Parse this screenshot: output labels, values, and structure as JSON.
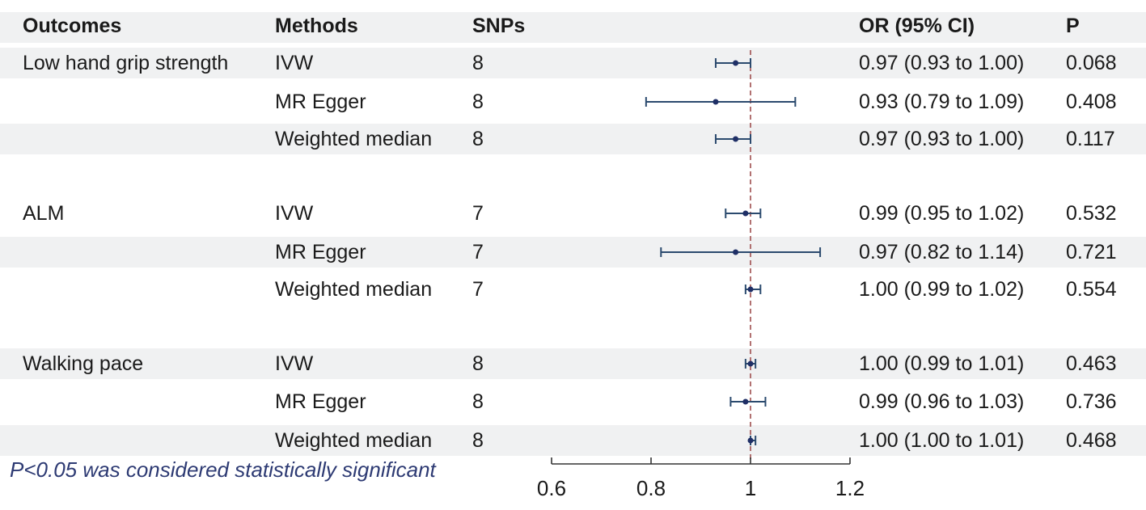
{
  "headers": {
    "outcomes": "Outcomes",
    "methods": "Methods",
    "snps": "SNPs",
    "or_ci": "OR (95% CI)",
    "p": "P"
  },
  "outcomes": [
    "Low hand grip strength",
    "ALM",
    "Walking pace"
  ],
  "rows": [
    {
      "outcome": "Low hand grip strength",
      "method": "IVW",
      "snps": "8",
      "or_ci": "0.97 (0.93 to 1.00)",
      "p": "0.068"
    },
    {
      "outcome": "",
      "method": "MR Egger",
      "snps": "8",
      "or_ci": "0.93 (0.79 to 1.09)",
      "p": "0.408"
    },
    {
      "outcome": "",
      "method": "Weighted median",
      "snps": "8",
      "or_ci": "0.97 (0.93 to 1.00)",
      "p": "0.117"
    },
    {
      "outcome": "ALM",
      "method": "IVW",
      "snps": "7",
      "or_ci": "0.99 (0.95 to 1.02)",
      "p": "0.532"
    },
    {
      "outcome": "",
      "method": "MR Egger",
      "snps": "7",
      "or_ci": "0.97 (0.82 to 1.14)",
      "p": "0.721"
    },
    {
      "outcome": "",
      "method": "Weighted median",
      "snps": "7",
      "or_ci": "1.00 (0.99 to 1.02)",
      "p": "0.554"
    },
    {
      "outcome": "Walking pace",
      "method": "IVW",
      "snps": "8",
      "or_ci": "1.00 (0.99 to 1.01)",
      "p": "0.463"
    },
    {
      "outcome": "",
      "method": "MR Egger",
      "snps": "8",
      "or_ci": "0.99 (0.96 to 1.03)",
      "p": "0.736"
    },
    {
      "outcome": "",
      "method": "Weighted median",
      "snps": "8",
      "or_ci": "1.00 (1.00 to 1.01)",
      "p": "0.468"
    }
  ],
  "footnote": "P<0.05 was considered statistically significant",
  "chart_data": {
    "type": "forest",
    "x_ticks": [
      "0.6",
      "0.8",
      "1",
      "1.2"
    ],
    "x_tick_values": [
      0.6,
      0.8,
      1.0,
      1.2
    ],
    "xlim": [
      0.6,
      1.2
    ],
    "reference_line": 1.0,
    "points": [
      {
        "label": "Low hand grip strength - IVW",
        "or": 0.97,
        "lower": 0.93,
        "upper": 1.0
      },
      {
        "label": "Low hand grip strength - MR Egger",
        "or": 0.93,
        "lower": 0.79,
        "upper": 1.09
      },
      {
        "label": "Low hand grip strength - Weighted median",
        "or": 0.97,
        "lower": 0.93,
        "upper": 1.0
      },
      {
        "label": "ALM - IVW",
        "or": 0.99,
        "lower": 0.95,
        "upper": 1.02
      },
      {
        "label": "ALM - MR Egger",
        "or": 0.97,
        "lower": 0.82,
        "upper": 1.14
      },
      {
        "label": "ALM - Weighted median",
        "or": 1.0,
        "lower": 0.99,
        "upper": 1.02
      },
      {
        "label": "Walking pace - IVW",
        "or": 1.0,
        "lower": 0.99,
        "upper": 1.01
      },
      {
        "label": "Walking pace - MR Egger",
        "or": 0.99,
        "lower": 0.96,
        "upper": 1.03
      },
      {
        "label": "Walking pace - Weighted median",
        "or": 1.0,
        "lower": 1.0,
        "upper": 1.01
      }
    ],
    "colors": {
      "ci_line": "#2b4a6e",
      "point": "#1f2f66",
      "reference": "#a05050",
      "axis": "#333333",
      "stripe": "#f0f1f2"
    }
  }
}
